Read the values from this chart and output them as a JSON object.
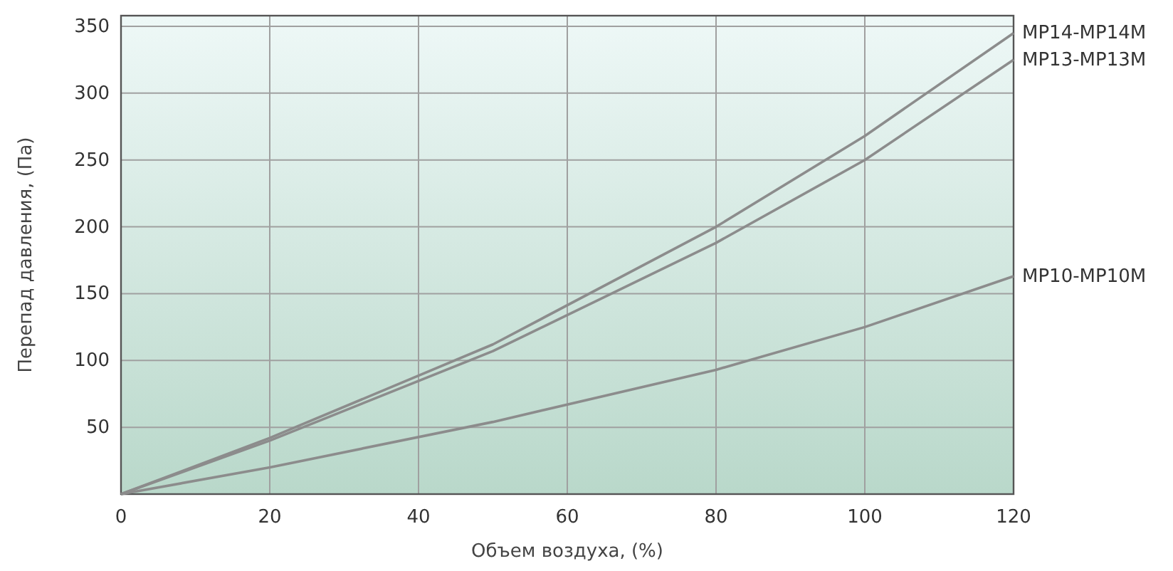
{
  "chart_data": {
    "type": "line",
    "xlabel": "Объем воздуха, (%)",
    "ylabel": "Перепад давления, (Па)",
    "x": [
      0,
      20,
      50,
      80,
      100,
      120
    ],
    "series": [
      {
        "name": "MP14-MP14M",
        "color": "#8c8c8c",
        "values": [
          0,
          42,
          112,
          200,
          268,
          345
        ]
      },
      {
        "name": "MP13-MP13M",
        "color": "#8c8c8c",
        "values": [
          0,
          40,
          107,
          188,
          250,
          325
        ]
      },
      {
        "name": "MP10-MP10M",
        "color": "#8c8c8c",
        "values": [
          0,
          20,
          54,
          93,
          125,
          163
        ]
      }
    ],
    "xlim": [
      0,
      120
    ],
    "xticks": [
      0,
      20,
      40,
      60,
      80,
      100,
      120
    ],
    "ylim": [
      0,
      358
    ],
    "yticks": [
      {
        "value": 0,
        "label": null
      },
      50,
      100,
      150,
      200,
      250,
      300,
      350
    ],
    "grid": true,
    "marker": "none",
    "line_style": "solid"
  }
}
